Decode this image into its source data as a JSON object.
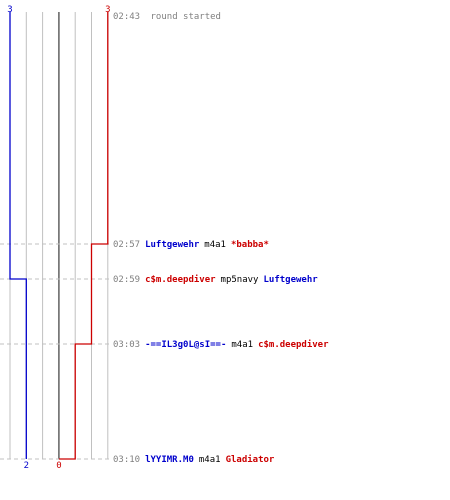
{
  "chart_data": {
    "type": "line",
    "colors": {
      "team_a": "#0000cc",
      "team_b": "#cc0000",
      "time": "#808080",
      "weapon": "#000000",
      "grid": "#c0c0c0",
      "grid_center": "#606060"
    },
    "start": {
      "score_a": "3",
      "score_b": "3",
      "time": "02:43",
      "text": "round started"
    },
    "end": {
      "score_a": "2",
      "score_b": "0"
    },
    "events": [
      {
        "time": "02:57",
        "killer": "Luftgewehr",
        "killer_team": "a",
        "weapon": "m4a1",
        "victim": "*babba*",
        "victim_team": "b",
        "score_a": 3,
        "score_b": 2
      },
      {
        "time": "02:59",
        "killer": "c$m.deepdiver",
        "killer_team": "b",
        "weapon": "mp5navy",
        "victim": "Luftgewehr",
        "victim_team": "a",
        "score_a": 2,
        "score_b": 2
      },
      {
        "time": "03:03",
        "killer": "-==IL3g0L@sI==-",
        "killer_team": "a",
        "weapon": "m4a1",
        "victim": "c$m.deepdiver",
        "victim_team": "b",
        "score_a": 2,
        "score_b": 1
      },
      {
        "time": "03:10",
        "killer": "lYYIMR.M0",
        "killer_team": "a",
        "weapon": "m4a1",
        "victim": "Gladiator",
        "victim_team": "b",
        "score_a": 2,
        "score_b": 0
      }
    ]
  }
}
